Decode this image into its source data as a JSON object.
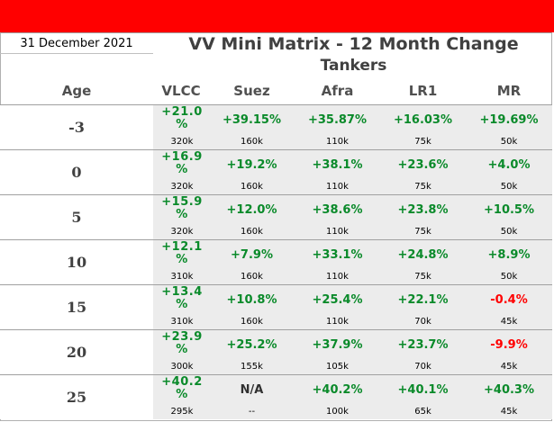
{
  "header": {
    "date": "31 December 2021",
    "title": "VV Mini Matrix - 12 Month Change",
    "subtitle": "Tankers"
  },
  "columns": [
    "Age",
    "VLCC",
    "Suez",
    "Afra",
    "LR1",
    "MR"
  ],
  "rows": [
    {
      "age": "-3",
      "vlcc": {
        "value_line1": "+21.0",
        "value_line2": "%",
        "size": "320k"
      },
      "cells": [
        {
          "value": "+39.15%",
          "size": "160k",
          "tone": "pos"
        },
        {
          "value": "+35.87%",
          "size": "110k",
          "tone": "pos"
        },
        {
          "value": "+16.03%",
          "size": "75k",
          "tone": "pos"
        },
        {
          "value": "+19.69%",
          "size": "50k",
          "tone": "pos"
        }
      ]
    },
    {
      "age": "0",
      "vlcc": {
        "value_line1": "+16.9",
        "value_line2": "%",
        "size": "320k"
      },
      "cells": [
        {
          "value": "+19.2%",
          "size": "160k",
          "tone": "pos"
        },
        {
          "value": "+38.1%",
          "size": "110k",
          "tone": "pos"
        },
        {
          "value": "+23.6%",
          "size": "75k",
          "tone": "pos"
        },
        {
          "value": "+4.0%",
          "size": "50k",
          "tone": "pos"
        }
      ]
    },
    {
      "age": "5",
      "vlcc": {
        "value_line1": "+15.9",
        "value_line2": "%",
        "size": "320k"
      },
      "cells": [
        {
          "value": "+12.0%",
          "size": "160k",
          "tone": "pos"
        },
        {
          "value": "+38.6%",
          "size": "110k",
          "tone": "pos"
        },
        {
          "value": "+23.8%",
          "size": "75k",
          "tone": "pos"
        },
        {
          "value": "+10.5%",
          "size": "50k",
          "tone": "pos"
        }
      ]
    },
    {
      "age": "10",
      "vlcc": {
        "value_line1": "+12.1",
        "value_line2": "%",
        "size": "310k"
      },
      "cells": [
        {
          "value": "+7.9%",
          "size": "160k",
          "tone": "pos"
        },
        {
          "value": "+33.1%",
          "size": "110k",
          "tone": "pos"
        },
        {
          "value": "+24.8%",
          "size": "75k",
          "tone": "pos"
        },
        {
          "value": "+8.9%",
          "size": "50k",
          "tone": "pos"
        }
      ]
    },
    {
      "age": "15",
      "vlcc": {
        "value_line1": "+13.4",
        "value_line2": "%",
        "size": "310k"
      },
      "cells": [
        {
          "value": "+10.8%",
          "size": "160k",
          "tone": "pos"
        },
        {
          "value": "+25.4%",
          "size": "110k",
          "tone": "pos"
        },
        {
          "value": "+22.1%",
          "size": "70k",
          "tone": "pos"
        },
        {
          "value": "-0.4%",
          "size": "45k",
          "tone": "neg"
        }
      ]
    },
    {
      "age": "20",
      "vlcc": {
        "value_line1": "+23.9",
        "value_line2": "%",
        "size": "300k"
      },
      "cells": [
        {
          "value": "+25.2%",
          "size": "155k",
          "tone": "pos"
        },
        {
          "value": "+37.9%",
          "size": "105k",
          "tone": "pos"
        },
        {
          "value": "+23.7%",
          "size": "70k",
          "tone": "pos"
        },
        {
          "value": "-9.9%",
          "size": "45k",
          "tone": "neg"
        }
      ]
    },
    {
      "age": "25",
      "vlcc": {
        "value_line1": "+40.2",
        "value_line2": "%",
        "size": "295k"
      },
      "cells": [
        {
          "value": "N/A",
          "size": "--",
          "tone": "na"
        },
        {
          "value": "+40.2%",
          "size": "100k",
          "tone": "pos"
        },
        {
          "value": "+40.1%",
          "size": "65k",
          "tone": "pos"
        },
        {
          "value": "+40.3%",
          "size": "45k",
          "tone": "pos"
        }
      ]
    }
  ],
  "colors": {
    "positive": "#0a8a2a",
    "negative": "#ff0000",
    "banner": "#ff0000",
    "cell_bg": "#ececec"
  }
}
